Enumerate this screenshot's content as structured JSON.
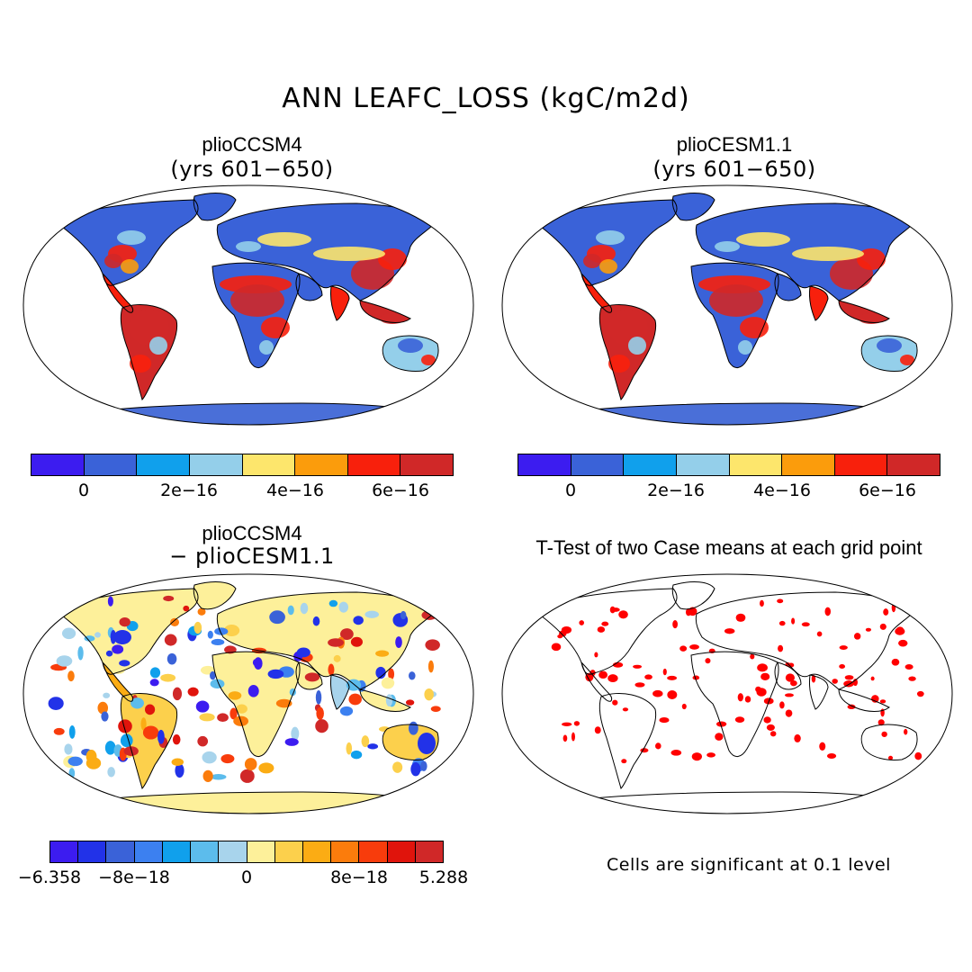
{
  "title": "ANN LEAFC_LOSS (kgC/m2d)",
  "panels": [
    {
      "id": "p1",
      "title": "plioCCSM4",
      "subtitle": "(yrs 601−650)"
    },
    {
      "id": "p2",
      "title": "plioCESM1.1",
      "subtitle": "(yrs 601−650)"
    },
    {
      "id": "p3",
      "title": "plioCCSM4",
      "subtitle": "− plioCESM1.1"
    },
    {
      "id": "p4",
      "title": "T-Test of two Case means at each grid point",
      "subtitle": ""
    }
  ],
  "colorbar_top": {
    "colors": [
      "#3c1cf0",
      "#3a62d8",
      "#10a0ec",
      "#94cfea",
      "#fde66c",
      "#fb9c0c",
      "#f8200c",
      "#d02828"
    ],
    "labels": [
      "0",
      "2e−16",
      "4e−16",
      "6e−16"
    ]
  },
  "colorbar_diff": {
    "colors": [
      "#3c1cf0",
      "#2232e8",
      "#3a62d8",
      "#3c80f0",
      "#10a0ec",
      "#5cbcec",
      "#a8d4ec",
      "#fdf09a",
      "#fcd04c",
      "#fbac14",
      "#fb7c0c",
      "#f83c0c",
      "#e0140c",
      "#d02828"
    ],
    "labels": [
      "−6.358",
      "−8e−18",
      "0",
      "8e−18",
      "5.288"
    ]
  },
  "significance_note": "Cells are significant at 0.1 level",
  "map_colors": {
    "ocean": "#ffffff",
    "ice": "#4a6fd8",
    "land_low": "#3a62d8",
    "land_mid": "#94cfea",
    "land_high": "#d02828",
    "diff_neutral": "#fdf09a",
    "signif": "#ff0000"
  }
}
